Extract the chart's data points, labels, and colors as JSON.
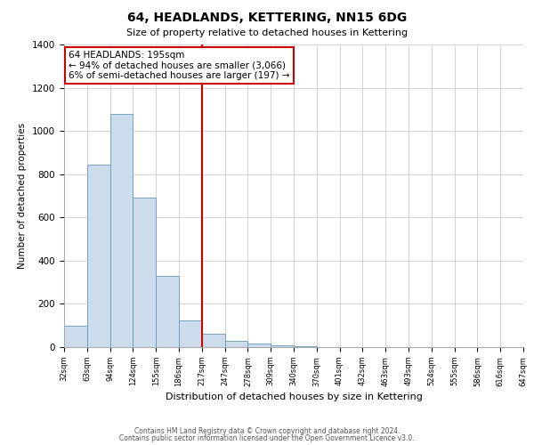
{
  "title": "64, HEADLANDS, KETTERING, NN15 6DG",
  "subtitle": "Size of property relative to detached houses in Kettering",
  "xlabel": "Distribution of detached houses by size in Kettering",
  "ylabel": "Number of detached properties",
  "bar_color": "#ccdcec",
  "bar_edge_color": "#6699bb",
  "bin_labels": [
    "32sqm",
    "63sqm",
    "94sqm",
    "124sqm",
    "155sqm",
    "186sqm",
    "217sqm",
    "247sqm",
    "278sqm",
    "309sqm",
    "340sqm",
    "370sqm",
    "401sqm",
    "432sqm",
    "463sqm",
    "493sqm",
    "524sqm",
    "555sqm",
    "586sqm",
    "616sqm",
    "647sqm"
  ],
  "bar_heights": [
    100,
    845,
    1080,
    690,
    330,
    125,
    60,
    30,
    15,
    10,
    5,
    0,
    0,
    0,
    0,
    0,
    0,
    0,
    0,
    0
  ],
  "ylim": [
    0,
    1400
  ],
  "yticks": [
    0,
    200,
    400,
    600,
    800,
    1000,
    1200,
    1400
  ],
  "vline_x": 6,
  "vline_color": "#cc0000",
  "annotation_text": "64 HEADLANDS: 195sqm\n← 94% of detached houses are smaller (3,066)\n6% of semi-detached houses are larger (197) →",
  "annotation_box_color": "#ffffff",
  "annotation_box_edge": "#cc0000",
  "footer_line1": "Contains HM Land Registry data © Crown copyright and database right 2024.",
  "footer_line2": "Contains public sector information licensed under the Open Government Licence v3.0.",
  "background_color": "#ffffff",
  "grid_color": "#cccccc"
}
